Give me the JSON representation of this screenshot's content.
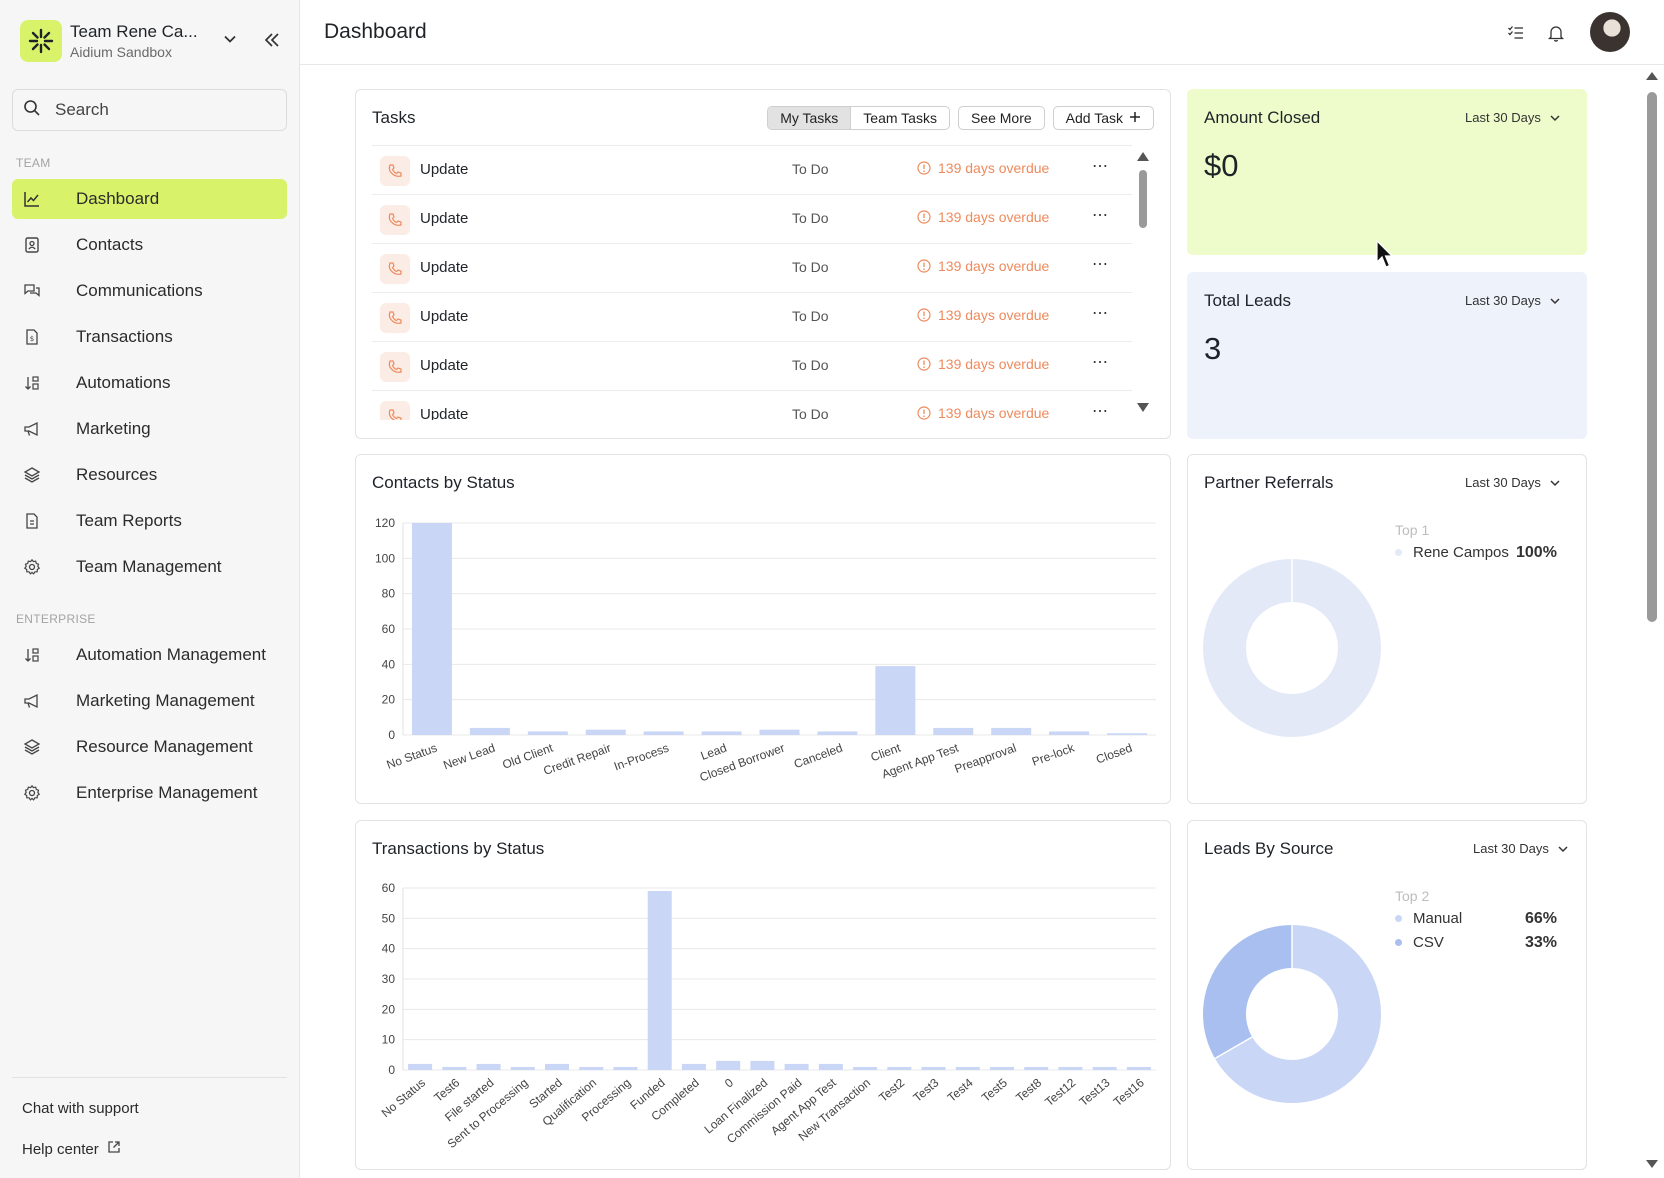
{
  "sidebar": {
    "team_name": "Team Rene Ca...",
    "team_sub": "Aidium Sandbox",
    "search_placeholder": "Search",
    "section_team": "TEAM",
    "section_enterprise": "ENTERPRISE",
    "items": [
      {
        "label": "Dashboard",
        "icon": "chart-line-icon",
        "active": true
      },
      {
        "label": "Contacts",
        "icon": "contact-card-icon"
      },
      {
        "label": "Communications",
        "icon": "chat-bubbles-icon"
      },
      {
        "label": "Transactions",
        "icon": "document-dollar-icon"
      },
      {
        "label": "Automations",
        "icon": "sort-automation-icon"
      },
      {
        "label": "Marketing",
        "icon": "megaphone-icon"
      },
      {
        "label": "Resources",
        "icon": "layers-icon"
      },
      {
        "label": "Team Reports",
        "icon": "report-icon"
      },
      {
        "label": "Team Management",
        "icon": "gear-icon"
      }
    ],
    "enterprise_items": [
      {
        "label": "Automation Management",
        "icon": "sort-automation-icon"
      },
      {
        "label": "Marketing Management",
        "icon": "megaphone-icon"
      },
      {
        "label": "Resource Management",
        "icon": "layers-icon"
      },
      {
        "label": "Enterprise Management",
        "icon": "gear-icon"
      }
    ],
    "chat_support": "Chat with support",
    "help_center": "Help center"
  },
  "header": {
    "title": "Dashboard"
  },
  "tasks": {
    "title": "Tasks",
    "my_tasks": "My Tasks",
    "team_tasks": "Team Tasks",
    "see_more": "See More",
    "add_task": "Add Task",
    "rows": [
      {
        "name": "Update",
        "status": "To Do",
        "due": "139 days overdue"
      },
      {
        "name": "Update",
        "status": "To Do",
        "due": "139 days overdue"
      },
      {
        "name": "Update",
        "status": "To Do",
        "due": "139 days overdue"
      },
      {
        "name": "Update",
        "status": "To Do",
        "due": "139 days overdue"
      },
      {
        "name": "Update",
        "status": "To Do",
        "due": "139 days overdue"
      },
      {
        "name": "Update",
        "status": "To Do",
        "due": "139 days overdue"
      }
    ]
  },
  "amount_closed": {
    "title": "Amount Closed",
    "range": "Last 30 Days",
    "value": "$0",
    "bg": "#eefccb"
  },
  "total_leads": {
    "title": "Total Leads",
    "range": "Last 30 Days",
    "value": "3",
    "bg": "#eef2fb"
  },
  "contacts_chart": {
    "title": "Contacts by Status",
    "chart_data": {
      "type": "bar",
      "categories": [
        "No Status",
        "New Lead",
        "Old Client",
        "Credit Repair",
        "In-Process",
        "Lead",
        "Closed Borrower",
        "Canceled",
        "Client",
        "Agent App Test",
        "Preapproval",
        "Pre-lock",
        "Closed"
      ],
      "values": [
        120,
        4,
        2,
        3,
        2,
        2,
        3,
        2,
        39,
        4,
        4,
        2,
        1
      ],
      "ylim": [
        0,
        120
      ],
      "yticks": [
        "0",
        "20",
        "40",
        "60",
        "80",
        "100",
        "120"
      ],
      "grid": true,
      "bar_color": "#c9d6f6"
    }
  },
  "transactions_chart": {
    "title": "Transactions by Status",
    "chart_data": {
      "type": "bar",
      "categories": [
        "No Status",
        "Test6",
        "File started",
        "Sent to Processing",
        "Started",
        "Qualification",
        "Processing",
        "Funded",
        "Completed",
        "0",
        "Loan Finalized",
        "Commission Paid",
        "Agent App Test",
        "New Transaction",
        "Test2",
        "Test3",
        "Test4",
        "Test5",
        "Test8",
        "Test12",
        "Test13",
        "Test16"
      ],
      "values": [
        2,
        1,
        2,
        1,
        2,
        1,
        1,
        59,
        2,
        3,
        3,
        2,
        2,
        1,
        1,
        1,
        1,
        1,
        1,
        1,
        1,
        1
      ],
      "ylim": [
        0,
        60
      ],
      "yticks": [
        "0",
        "10",
        "20",
        "30",
        "40",
        "50",
        "60"
      ],
      "grid": true,
      "bar_color": "#c9d6f6"
    }
  },
  "partner_referrals": {
    "title": "Partner Referrals",
    "range": "Last 30 Days",
    "legend_head": "Top 1",
    "chart_data": {
      "type": "pie",
      "labels": [
        "Rene Campos"
      ],
      "values": [
        100
      ],
      "pct_labels": [
        "100%"
      ],
      "colors": [
        "#e4e9f8"
      ]
    }
  },
  "leads_by_source": {
    "title": "Leads By Source",
    "range": "Last 30 Days",
    "legend_head": "Top 2",
    "chart_data": {
      "type": "pie",
      "labels": [
        "Manual",
        "CSV"
      ],
      "values": [
        66,
        33
      ],
      "pct_labels": [
        "66%",
        "33%"
      ],
      "colors": [
        "#c9d6f6",
        "#a9bff0"
      ]
    }
  }
}
